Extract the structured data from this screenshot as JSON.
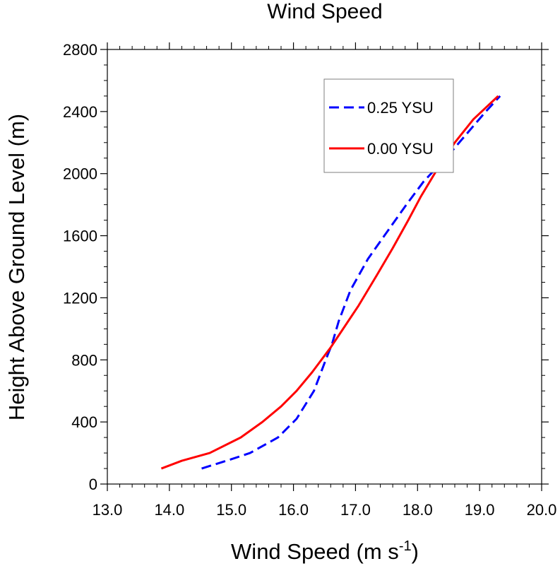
{
  "chart_data": {
    "type": "line",
    "title": "Wind Speed",
    "xlabel": "Wind Speed (m s",
    "xlabel_sup": "-1",
    "xlabel_end": ")",
    "ylabel": "Height Above Ground Level (m)",
    "xlim": [
      13.0,
      20.0
    ],
    "ylim": [
      0,
      2800
    ],
    "x_ticks": [
      "13.0",
      "14.0",
      "15.0",
      "16.0",
      "17.0",
      "18.0",
      "19.0",
      "20.0"
    ],
    "y_ticks": [
      "0",
      "400",
      "800",
      "1200",
      "1600",
      "2000",
      "2400",
      "2800"
    ],
    "grid": false,
    "legend": "top-right",
    "series": [
      {
        "name": "0.25 YSU",
        "color": "#0000ff",
        "dash": "dashed",
        "points": [
          [
            14.52,
            100
          ],
          [
            15.0,
            160
          ],
          [
            15.3,
            200
          ],
          [
            15.75,
            300
          ],
          [
            16.05,
            420
          ],
          [
            16.33,
            600
          ],
          [
            16.52,
            800
          ],
          [
            16.62,
            900
          ],
          [
            16.73,
            1050
          ],
          [
            16.92,
            1250
          ],
          [
            17.2,
            1450
          ],
          [
            17.5,
            1620
          ],
          [
            17.82,
            1800
          ],
          [
            18.1,
            1950
          ],
          [
            18.5,
            2120
          ],
          [
            18.8,
            2260
          ],
          [
            19.1,
            2400
          ],
          [
            19.33,
            2500
          ]
        ]
      },
      {
        "name": "0.00 YSU",
        "color": "#ff0000",
        "dash": "solid",
        "points": [
          [
            13.87,
            100
          ],
          [
            14.2,
            150
          ],
          [
            14.65,
            200
          ],
          [
            15.15,
            300
          ],
          [
            15.5,
            400
          ],
          [
            15.8,
            500
          ],
          [
            16.05,
            600
          ],
          [
            16.3,
            720
          ],
          [
            16.6,
            880
          ],
          [
            16.8,
            1000
          ],
          [
            17.05,
            1150
          ],
          [
            17.35,
            1350
          ],
          [
            17.6,
            1520
          ],
          [
            17.85,
            1700
          ],
          [
            18.05,
            1850
          ],
          [
            18.35,
            2050
          ],
          [
            18.6,
            2200
          ],
          [
            18.9,
            2350
          ],
          [
            19.3,
            2500
          ]
        ]
      }
    ]
  }
}
